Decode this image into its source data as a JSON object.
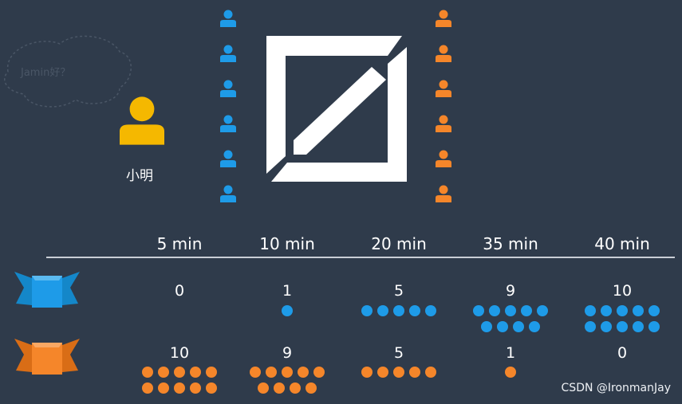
{
  "person": {
    "name": "小明",
    "color": "#f5b800"
  },
  "bubble": {
    "text": "Jamin好？"
  },
  "colors": {
    "blue": "#1e9be8",
    "orange": "#f5862a",
    "background": "#2f3b4b"
  },
  "timeline": {
    "times": [
      "5 min",
      "10 min",
      "20 min",
      "35 min",
      "40 min"
    ],
    "blue_counts": [
      "0",
      "1",
      "5",
      "9",
      "10"
    ],
    "orange_counts": [
      "10",
      "9",
      "5",
      "1",
      "0"
    ]
  },
  "queues": {
    "left_people": 6,
    "right_people": 6
  },
  "watermark": "CSDN @IronmanJay"
}
